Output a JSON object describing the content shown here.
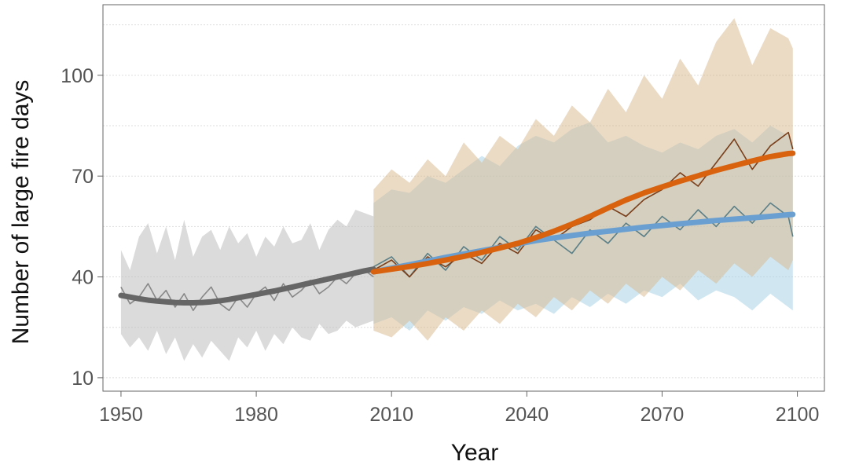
{
  "chart_data": {
    "type": "line",
    "xlabel": "Year",
    "ylabel": "Number of large fire days",
    "xlim": [
      1946,
      2106
    ],
    "ylim": [
      6,
      121
    ],
    "xticks": [
      1950,
      1980,
      2010,
      2040,
      2070,
      2100
    ],
    "yticks": [
      10,
      40,
      70,
      100
    ],
    "grid": true,
    "legend": "none",
    "colors": {
      "historical_band": "#bdbdbd",
      "historical_line": "#888888",
      "historical_trend": "#666666",
      "blue_band": "#a9d4e8",
      "blue_line": "#5b7f87",
      "blue_trend": "#6a9fd1",
      "orange_band": "#d8b88c",
      "orange_line": "#7a3e1a",
      "orange_trend": "#d9620f"
    },
    "series": [
      {
        "role": "historical",
        "x": [
          1950,
          1952,
          1954,
          1956,
          1958,
          1960,
          1962,
          1964,
          1966,
          1968,
          1970,
          1972,
          1974,
          1976,
          1978,
          1980,
          1982,
          1984,
          1986,
          1988,
          1990,
          1992,
          1994,
          1996,
          1998,
          2000,
          2002,
          2004,
          2006
        ],
        "values": [
          37,
          32,
          34,
          38,
          33,
          36,
          31,
          35,
          30,
          34,
          37,
          32,
          30,
          34,
          31,
          35,
          37,
          33,
          38,
          34,
          36,
          39,
          35,
          37,
          40,
          38,
          41,
          42,
          40
        ],
        "trend": [
          34.5,
          34.0,
          33.5,
          33.1,
          32.8,
          32.6,
          32.4,
          32.3,
          32.3,
          32.4,
          32.6,
          32.9,
          33.3,
          33.8,
          34.3,
          34.8,
          35.3,
          35.8,
          36.4,
          37.0,
          37.6,
          38.2,
          38.8,
          39.4,
          40.0,
          40.6,
          41.2,
          41.8,
          42.3
        ],
        "band_upper": [
          48,
          42,
          52,
          56,
          47,
          55,
          45,
          57,
          46,
          52,
          54,
          48,
          55,
          50,
          53,
          46,
          52,
          49,
          55,
          50,
          51,
          56,
          48,
          54,
          57,
          55,
          60,
          59,
          58
        ],
        "band_lower": [
          23,
          19,
          22,
          18,
          24,
          17,
          22,
          15,
          20,
          16,
          21,
          18,
          15,
          22,
          19,
          24,
          18,
          23,
          20,
          25,
          22,
          21,
          26,
          23,
          24,
          27,
          25,
          26,
          27
        ]
      },
      {
        "role": "projection-low",
        "x": [
          2006,
          2010,
          2014,
          2018,
          2022,
          2026,
          2030,
          2034,
          2038,
          2042,
          2046,
          2050,
          2054,
          2058,
          2062,
          2066,
          2070,
          2074,
          2078,
          2082,
          2086,
          2090,
          2094,
          2098,
          2099
        ],
        "values": [
          43,
          46,
          40,
          47,
          42,
          49,
          45,
          52,
          48,
          55,
          51,
          47,
          54,
          50,
          56,
          52,
          58,
          54,
          60,
          55,
          61,
          56,
          62,
          58,
          52
        ],
        "trend": [
          41.5,
          42.6,
          43.6,
          44.7,
          45.8,
          46.8,
          47.8,
          48.8,
          49.8,
          50.8,
          51.6,
          52.3,
          53.0,
          53.6,
          54.2,
          54.8,
          55.3,
          55.8,
          56.3,
          56.8,
          57.2,
          57.6,
          58.0,
          58.5,
          58.6
        ],
        "band_upper": [
          62,
          66,
          65,
          70,
          68,
          72,
          76,
          73,
          79,
          82,
          80,
          84,
          86,
          80,
          82,
          79,
          77,
          80,
          78,
          82,
          84,
          80,
          85,
          82,
          80
        ],
        "band_lower": [
          26,
          28,
          24,
          30,
          27,
          31,
          29,
          33,
          30,
          32,
          29,
          34,
          31,
          35,
          32,
          36,
          34,
          38,
          33,
          36,
          34,
          30,
          35,
          31,
          30
        ]
      },
      {
        "role": "projection-high",
        "x": [
          2006,
          2010,
          2014,
          2018,
          2022,
          2026,
          2030,
          2034,
          2038,
          2042,
          2046,
          2050,
          2054,
          2058,
          2062,
          2066,
          2070,
          2074,
          2078,
          2082,
          2086,
          2090,
          2094,
          2098,
          2099
        ],
        "values": [
          42,
          45,
          40,
          46,
          43,
          47,
          44,
          50,
          47,
          54,
          51,
          55,
          57,
          61,
          58,
          63,
          66,
          71,
          67,
          74,
          81,
          72,
          79,
          83,
          78
        ],
        "trend": [
          41.5,
          42.3,
          43.1,
          44.0,
          45.0,
          46.1,
          47.3,
          48.6,
          50.0,
          51.7,
          53.6,
          55.7,
          58.0,
          60.5,
          62.9,
          65.0,
          66.8,
          68.5,
          70.1,
          71.7,
          73.1,
          74.5,
          75.8,
          76.7,
          76.8
        ],
        "band_upper": [
          66,
          72,
          68,
          75,
          70,
          80,
          74,
          82,
          78,
          87,
          82,
          91,
          86,
          96,
          89,
          100,
          93,
          105,
          97,
          110,
          117,
          103,
          114,
          111,
          108
        ],
        "band_lower": [
          24,
          22,
          27,
          21,
          28,
          24,
          30,
          26,
          32,
          28,
          34,
          30,
          36,
          32,
          38,
          34,
          40,
          36,
          42,
          38,
          44,
          40,
          46,
          42,
          45
        ]
      }
    ]
  }
}
